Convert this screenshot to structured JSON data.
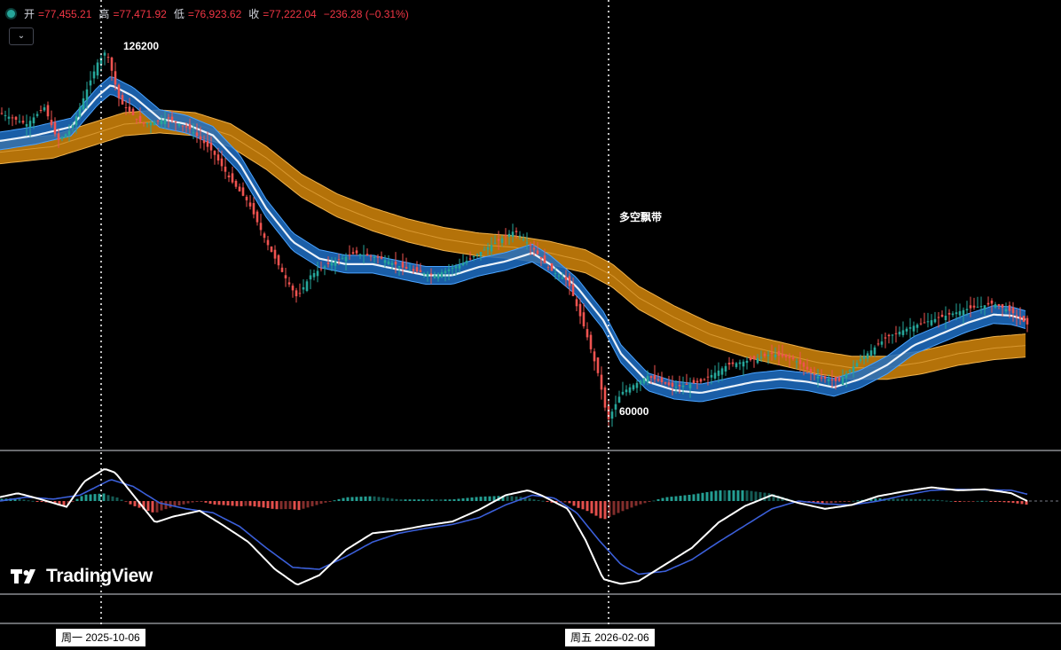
{
  "header": {
    "open_label": "开",
    "open_value": "=77,455.21",
    "high_label": "高",
    "high_value": "=77,471.92",
    "low_label": "低",
    "low_value": "=76,923.62",
    "close_label": "收",
    "close_value": "=77,222.04",
    "change": "−236.28 (−0.31%)",
    "collapse_icon": "chevron-down-icon"
  },
  "annotations": {
    "high_label": "126200",
    "low_label": "60000",
    "band_label": "多空飘带"
  },
  "crosshair_dates": [
    "周一  2025-10-06",
    "周五  2026-02-06"
  ],
  "brand": {
    "name": "TradingView"
  },
  "colors": {
    "up": "#26a69a",
    "down": "#ef5350",
    "fast_band": "#1e6fc4",
    "slow_band": "#d4860b",
    "macd_line": "#ffffff",
    "signal_line": "#3b5fd9",
    "hist_up": "#26a69a",
    "hist_down": "#ef5350"
  },
  "chart_data": {
    "type": "candlestick",
    "indicators": [
      "dual EMA ribbon bands (多空飘带)",
      "MACD"
    ],
    "last": {
      "open": 77455.21,
      "high": 77471.92,
      "low": 76923.62,
      "close": 77222.04,
      "change": -236.28,
      "change_pct": -0.31
    },
    "price_path": [
      [
        0,
        115000
      ],
      [
        30,
        113000
      ],
      [
        50,
        116000
      ],
      [
        65,
        110000
      ],
      [
        80,
        112000
      ],
      [
        95,
        118000
      ],
      [
        110,
        124000
      ],
      [
        120,
        126200
      ],
      [
        135,
        117000
      ],
      [
        160,
        113000
      ],
      [
        190,
        114000
      ],
      [
        215,
        112000
      ],
      [
        240,
        108000
      ],
      [
        260,
        103000
      ],
      [
        280,
        99000
      ],
      [
        300,
        92000
      ],
      [
        320,
        86000
      ],
      [
        335,
        82000
      ],
      [
        350,
        86000
      ],
      [
        370,
        88000
      ],
      [
        400,
        90000
      ],
      [
        430,
        89000
      ],
      [
        460,
        87000
      ],
      [
        490,
        86000
      ],
      [
        520,
        88000
      ],
      [
        550,
        91000
      ],
      [
        580,
        94000
      ],
      [
        600,
        91000
      ],
      [
        620,
        87000
      ],
      [
        640,
        85000
      ],
      [
        660,
        76000
      ],
      [
        675,
        68000
      ],
      [
        685,
        60000
      ],
      [
        700,
        65000
      ],
      [
        730,
        68000
      ],
      [
        760,
        66000
      ],
      [
        790,
        67000
      ],
      [
        820,
        70000
      ],
      [
        850,
        71000
      ],
      [
        870,
        72000
      ],
      [
        895,
        71000
      ],
      [
        920,
        68000
      ],
      [
        945,
        67000
      ],
      [
        970,
        71000
      ],
      [
        1000,
        75000
      ],
      [
        1030,
        77000
      ],
      [
        1060,
        78500
      ],
      [
        1090,
        80000
      ],
      [
        1120,
        81000
      ],
      [
        1140,
        79500
      ],
      [
        1158,
        77222
      ]
    ],
    "ribbon_bands": {
      "fast": [
        [
          0,
          110000
        ],
        [
          40,
          111000
        ],
        [
          80,
          112500
        ],
        [
          110,
          118000
        ],
        [
          125,
          120000
        ],
        [
          150,
          118000
        ],
        [
          180,
          114000
        ],
        [
          210,
          113000
        ],
        [
          240,
          111000
        ],
        [
          270,
          106000
        ],
        [
          300,
          98000
        ],
        [
          330,
          92000
        ],
        [
          360,
          89000
        ],
        [
          390,
          88000
        ],
        [
          420,
          88000
        ],
        [
          450,
          87000
        ],
        [
          480,
          86000
        ],
        [
          510,
          86000
        ],
        [
          540,
          87500
        ],
        [
          570,
          88500
        ],
        [
          600,
          90000
        ],
        [
          620,
          88000
        ],
        [
          650,
          84000
        ],
        [
          680,
          78000
        ],
        [
          700,
          72000
        ],
        [
          730,
          67000
        ],
        [
          760,
          65500
        ],
        [
          790,
          65000
        ],
        [
          820,
          66000
        ],
        [
          850,
          67000
        ],
        [
          880,
          67500
        ],
        [
          910,
          67000
        ],
        [
          940,
          66000
        ],
        [
          970,
          67500
        ],
        [
          1000,
          70000
        ],
        [
          1030,
          73500
        ],
        [
          1060,
          75500
        ],
        [
          1090,
          77500
        ],
        [
          1120,
          79000
        ],
        [
          1140,
          78800
        ],
        [
          1158,
          78000
        ]
      ],
      "slow": [
        [
          0,
          108000
        ],
        [
          60,
          109000
        ],
        [
          100,
          111000
        ],
        [
          140,
          113000
        ],
        [
          180,
          113500
        ],
        [
          220,
          113000
        ],
        [
          260,
          111000
        ],
        [
          300,
          107000
        ],
        [
          340,
          102000
        ],
        [
          380,
          98500
        ],
        [
          420,
          96000
        ],
        [
          460,
          94000
        ],
        [
          500,
          92500
        ],
        [
          540,
          91500
        ],
        [
          580,
          91000
        ],
        [
          620,
          90000
        ],
        [
          660,
          88500
        ],
        [
          690,
          86000
        ],
        [
          720,
          82000
        ],
        [
          760,
          78500
        ],
        [
          800,
          75500
        ],
        [
          840,
          73500
        ],
        [
          880,
          72000
        ],
        [
          920,
          70500
        ],
        [
          960,
          69500
        ],
        [
          1000,
          69500
        ],
        [
          1040,
          70500
        ],
        [
          1080,
          72000
        ],
        [
          1120,
          73000
        ],
        [
          1158,
          73500
        ]
      ]
    },
    "macd": {
      "macd_line": [
        [
          0,
          40
        ],
        [
          20,
          80
        ],
        [
          45,
          20
        ],
        [
          75,
          -60
        ],
        [
          95,
          200
        ],
        [
          118,
          330
        ],
        [
          130,
          290
        ],
        [
          160,
          -50
        ],
        [
          175,
          -220
        ],
        [
          195,
          -160
        ],
        [
          225,
          -100
        ],
        [
          250,
          -240
        ],
        [
          280,
          -420
        ],
        [
          310,
          -700
        ],
        [
          335,
          -860
        ],
        [
          360,
          -760
        ],
        [
          390,
          -500
        ],
        [
          420,
          -330
        ],
        [
          450,
          -300
        ],
        [
          480,
          -250
        ],
        [
          510,
          -210
        ],
        [
          540,
          -90
        ],
        [
          570,
          60
        ],
        [
          595,
          110
        ],
        [
          610,
          60
        ],
        [
          640,
          -80
        ],
        [
          660,
          -400
        ],
        [
          680,
          -800
        ],
        [
          700,
          -850
        ],
        [
          720,
          -820
        ],
        [
          750,
          -650
        ],
        [
          780,
          -480
        ],
        [
          810,
          -220
        ],
        [
          840,
          -50
        ],
        [
          870,
          60
        ],
        [
          900,
          -20
        ],
        [
          930,
          -80
        ],
        [
          960,
          -40
        ],
        [
          990,
          50
        ],
        [
          1020,
          100
        ],
        [
          1050,
          140
        ],
        [
          1080,
          110
        ],
        [
          1110,
          120
        ],
        [
          1140,
          80
        ],
        [
          1158,
          0
        ]
      ],
      "signal_line": [
        [
          0,
          0
        ],
        [
          30,
          40
        ],
        [
          60,
          20
        ],
        [
          90,
          60
        ],
        [
          125,
          220
        ],
        [
          150,
          150
        ],
        [
          180,
          -20
        ],
        [
          210,
          -80
        ],
        [
          240,
          -120
        ],
        [
          270,
          -260
        ],
        [
          300,
          -480
        ],
        [
          330,
          -680
        ],
        [
          360,
          -700
        ],
        [
          390,
          -570
        ],
        [
          420,
          -420
        ],
        [
          450,
          -330
        ],
        [
          480,
          -280
        ],
        [
          510,
          -240
        ],
        [
          540,
          -170
        ],
        [
          570,
          -40
        ],
        [
          600,
          60
        ],
        [
          625,
          30
        ],
        [
          650,
          -120
        ],
        [
          675,
          -400
        ],
        [
          700,
          -650
        ],
        [
          720,
          -750
        ],
        [
          750,
          -720
        ],
        [
          780,
          -600
        ],
        [
          810,
          -420
        ],
        [
          840,
          -250
        ],
        [
          870,
          -80
        ],
        [
          900,
          0
        ],
        [
          930,
          -30
        ],
        [
          960,
          -40
        ],
        [
          990,
          0
        ],
        [
          1020,
          60
        ],
        [
          1050,
          110
        ],
        [
          1080,
          120
        ],
        [
          1110,
          115
        ],
        [
          1140,
          110
        ],
        [
          1158,
          70
        ]
      ],
      "histogram_step": 5
    }
  }
}
